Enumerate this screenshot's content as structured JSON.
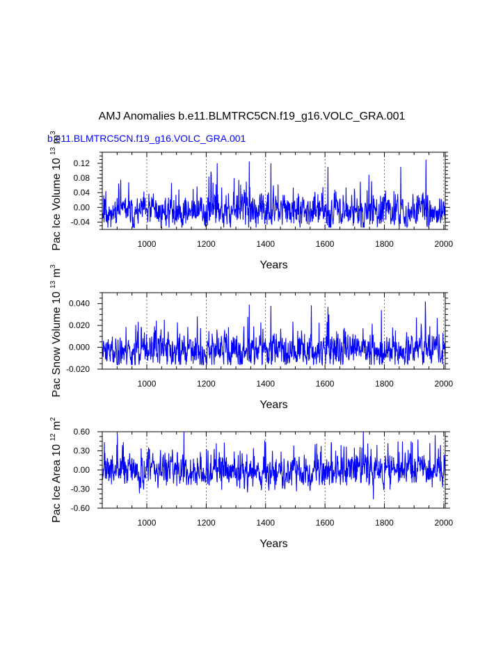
{
  "figure": {
    "title": "AMJ Anomalies b.e11.BLMTRC5CN.f19_g16.VOLC_GRA.001",
    "case_label": "b.e11.BLMTRC5CN.f19_g16.VOLC_GRA.001",
    "case_label_color": "#0000ff",
    "series_color": "#0000ff"
  },
  "chart_data": [
    {
      "type": "line",
      "name": "ice-volume",
      "ylabel_main": "Pac Ice Volume 10",
      "ylabel_exp": "13",
      "ylabel_unit": "m",
      "ylabel_unit_exp": "3",
      "xlabel": "Years",
      "xlim": [
        850,
        2005
      ],
      "ylim": [
        -0.06,
        0.15
      ],
      "xticks": [
        1000,
        1200,
        1400,
        1600,
        1800,
        2000
      ],
      "xtick_labels": [
        "1000",
        "1200",
        "1400",
        "1600",
        "1800",
        "2000"
      ],
      "yticks": [
        -0.04,
        0.0,
        0.04,
        0.08,
        0.12
      ],
      "ytick_labels": [
        "-0.04",
        "0.00",
        "0.04",
        "0.08",
        "0.12"
      ],
      "grid_x": true,
      "baseline": -0.012,
      "amplitude": 0.02,
      "lower_bound": -0.055,
      "spikes": [
        [
          1237,
          0.12
        ],
        [
          1345,
          0.125
        ],
        [
          1418,
          0.12
        ],
        [
          1610,
          0.11
        ],
        [
          1855,
          0.11
        ],
        [
          1940,
          0.13
        ]
      ],
      "seed": 11
    },
    {
      "type": "line",
      "name": "snow-volume",
      "ylabel_main": "Pac Snow Volume 10",
      "ylabel_exp": "13",
      "ylabel_unit": "m",
      "ylabel_unit_exp": "3",
      "xlabel": "Years",
      "xlim": [
        850,
        2005
      ],
      "ylim": [
        -0.02,
        0.05
      ],
      "xticks": [
        1000,
        1200,
        1400,
        1600,
        1800,
        2000
      ],
      "xtick_labels": [
        "1000",
        "1200",
        "1400",
        "1600",
        "1800",
        "2000"
      ],
      "yticks": [
        -0.02,
        0.0,
        0.02,
        0.04
      ],
      "ytick_labels": [
        "-0.020",
        "0.000",
        "0.020",
        "0.040"
      ],
      "grid_x": true,
      "baseline": -0.003,
      "amplitude": 0.007,
      "lower_bound": -0.016,
      "spikes": [
        [
          1345,
          0.039
        ],
        [
          1418,
          0.038
        ],
        [
          1610,
          0.037
        ],
        [
          1790,
          0.034
        ],
        [
          1938,
          0.042
        ]
      ],
      "seed": 23
    },
    {
      "type": "line",
      "name": "ice-area",
      "ylabel_main": "Pac Ice Area 10",
      "ylabel_exp": "12",
      "ylabel_unit": "m",
      "ylabel_unit_exp": "2",
      "xlabel": "Years",
      "xlim": [
        850,
        2005
      ],
      "ylim": [
        -0.6,
        0.6
      ],
      "xticks": [
        1000,
        1200,
        1400,
        1600,
        1800,
        2000
      ],
      "xtick_labels": [
        "1000",
        "1200",
        "1400",
        "1600",
        "1800",
        "2000"
      ],
      "yticks": [
        -0.6,
        -0.3,
        0.0,
        0.3,
        0.6
      ],
      "ytick_labels": [
        "-0.60",
        "-0.30",
        "0.00",
        "0.30",
        "0.60"
      ],
      "grid_x": true,
      "baseline": -0.02,
      "amplitude": 0.12,
      "lower_bound": -0.47,
      "spikes": [
        [
          1400,
          0.44
        ],
        [
          1718,
          0.36
        ],
        [
          1890,
          0.45
        ],
        [
          1953,
          0.42
        ],
        [
          1763,
          -0.46
        ]
      ],
      "seed": 37
    }
  ]
}
